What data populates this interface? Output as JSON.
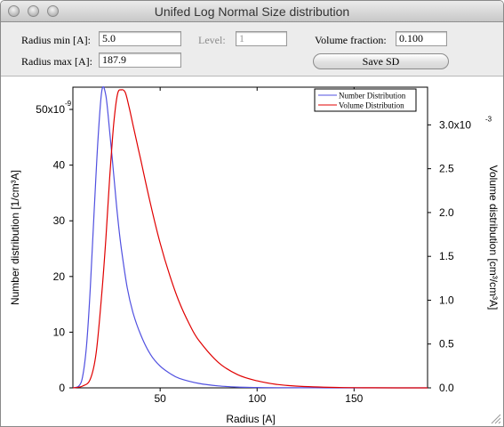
{
  "window": {
    "title": "Unifed Log Normal Size distribution"
  },
  "controls": {
    "radius_min": {
      "label": "Radius min [A]:",
      "value": "5.0"
    },
    "radius_max": {
      "label": "Radius max [A]:",
      "value": "187.9"
    },
    "level": {
      "label": "Level:",
      "value": "1"
    },
    "volume_fraction": {
      "label": "Volume fraction:",
      "value": "0.100"
    },
    "save_label": "Save SD"
  },
  "chart_data": {
    "type": "line",
    "xlabel": "Radius [A]",
    "ylabel_left": "Number distribution [1/cm³A]",
    "ylabel_right": "Volume distribution [cm³/cm³A]",
    "xlim": [
      5,
      187.9
    ],
    "ylim_left": [
      0,
      5.4e-08
    ],
    "ylim_right": [
      0,
      0.00343
    ],
    "x_ticks": [
      "50",
      "100",
      "150"
    ],
    "y_left_ticks": [
      "0",
      "10",
      "20",
      "30",
      "40",
      "50x10"
    ],
    "y_left_exponent": "-9",
    "y_right_ticks": [
      "0.0",
      "0.5",
      "1.0",
      "1.5",
      "2.0",
      "2.5",
      "3.0x10"
    ],
    "y_right_exponent": "-3",
    "legend_position": "top-right",
    "series": [
      {
        "name": "Number Distribution",
        "axis": "left",
        "color": "#5050e0",
        "x": [
          5,
          8,
          10,
          12,
          14,
          16,
          18,
          20,
          22,
          24,
          26,
          28,
          30,
          33,
          36,
          40,
          45,
          50,
          55,
          60,
          70,
          80,
          90,
          100,
          110,
          130,
          150,
          187.9
        ],
        "y": [
          0,
          3e-10,
          2e-09,
          7.5e-09,
          1.8e-08,
          3.2e-08,
          4.5e-08,
          5.35e-08,
          5.25e-08,
          4.6e-08,
          3.85e-08,
          3.1e-08,
          2.5e-08,
          1.8e-08,
          1.35e-08,
          9.5e-09,
          6e-09,
          3.9e-09,
          2.6e-09,
          1.7e-09,
          8e-10,
          3.5e-10,
          1.5e-10,
          7e-11,
          3e-11,
          1e-11,
          0,
          0
        ]
      },
      {
        "name": "Volume Distribution",
        "axis": "right",
        "color": "#e00000",
        "x": [
          5,
          10,
          14,
          17,
          20,
          22,
          24,
          26,
          28,
          30,
          32,
          34,
          36,
          38,
          40,
          45,
          50,
          55,
          60,
          65,
          70,
          80,
          90,
          100,
          110,
          120,
          140,
          160,
          187.9
        ],
        "y": [
          0,
          2e-05,
          0.0001,
          0.0004,
          0.0011,
          0.0017,
          0.0024,
          0.003,
          0.00335,
          0.0034,
          0.00337,
          0.0032,
          0.003,
          0.0028,
          0.0026,
          0.0021,
          0.00165,
          0.00128,
          0.00097,
          0.00073,
          0.00054,
          0.00029,
          0.00015,
          8e-05,
          4e-05,
          2e-05,
          5e-06,
          1e-06,
          0
        ]
      }
    ]
  }
}
